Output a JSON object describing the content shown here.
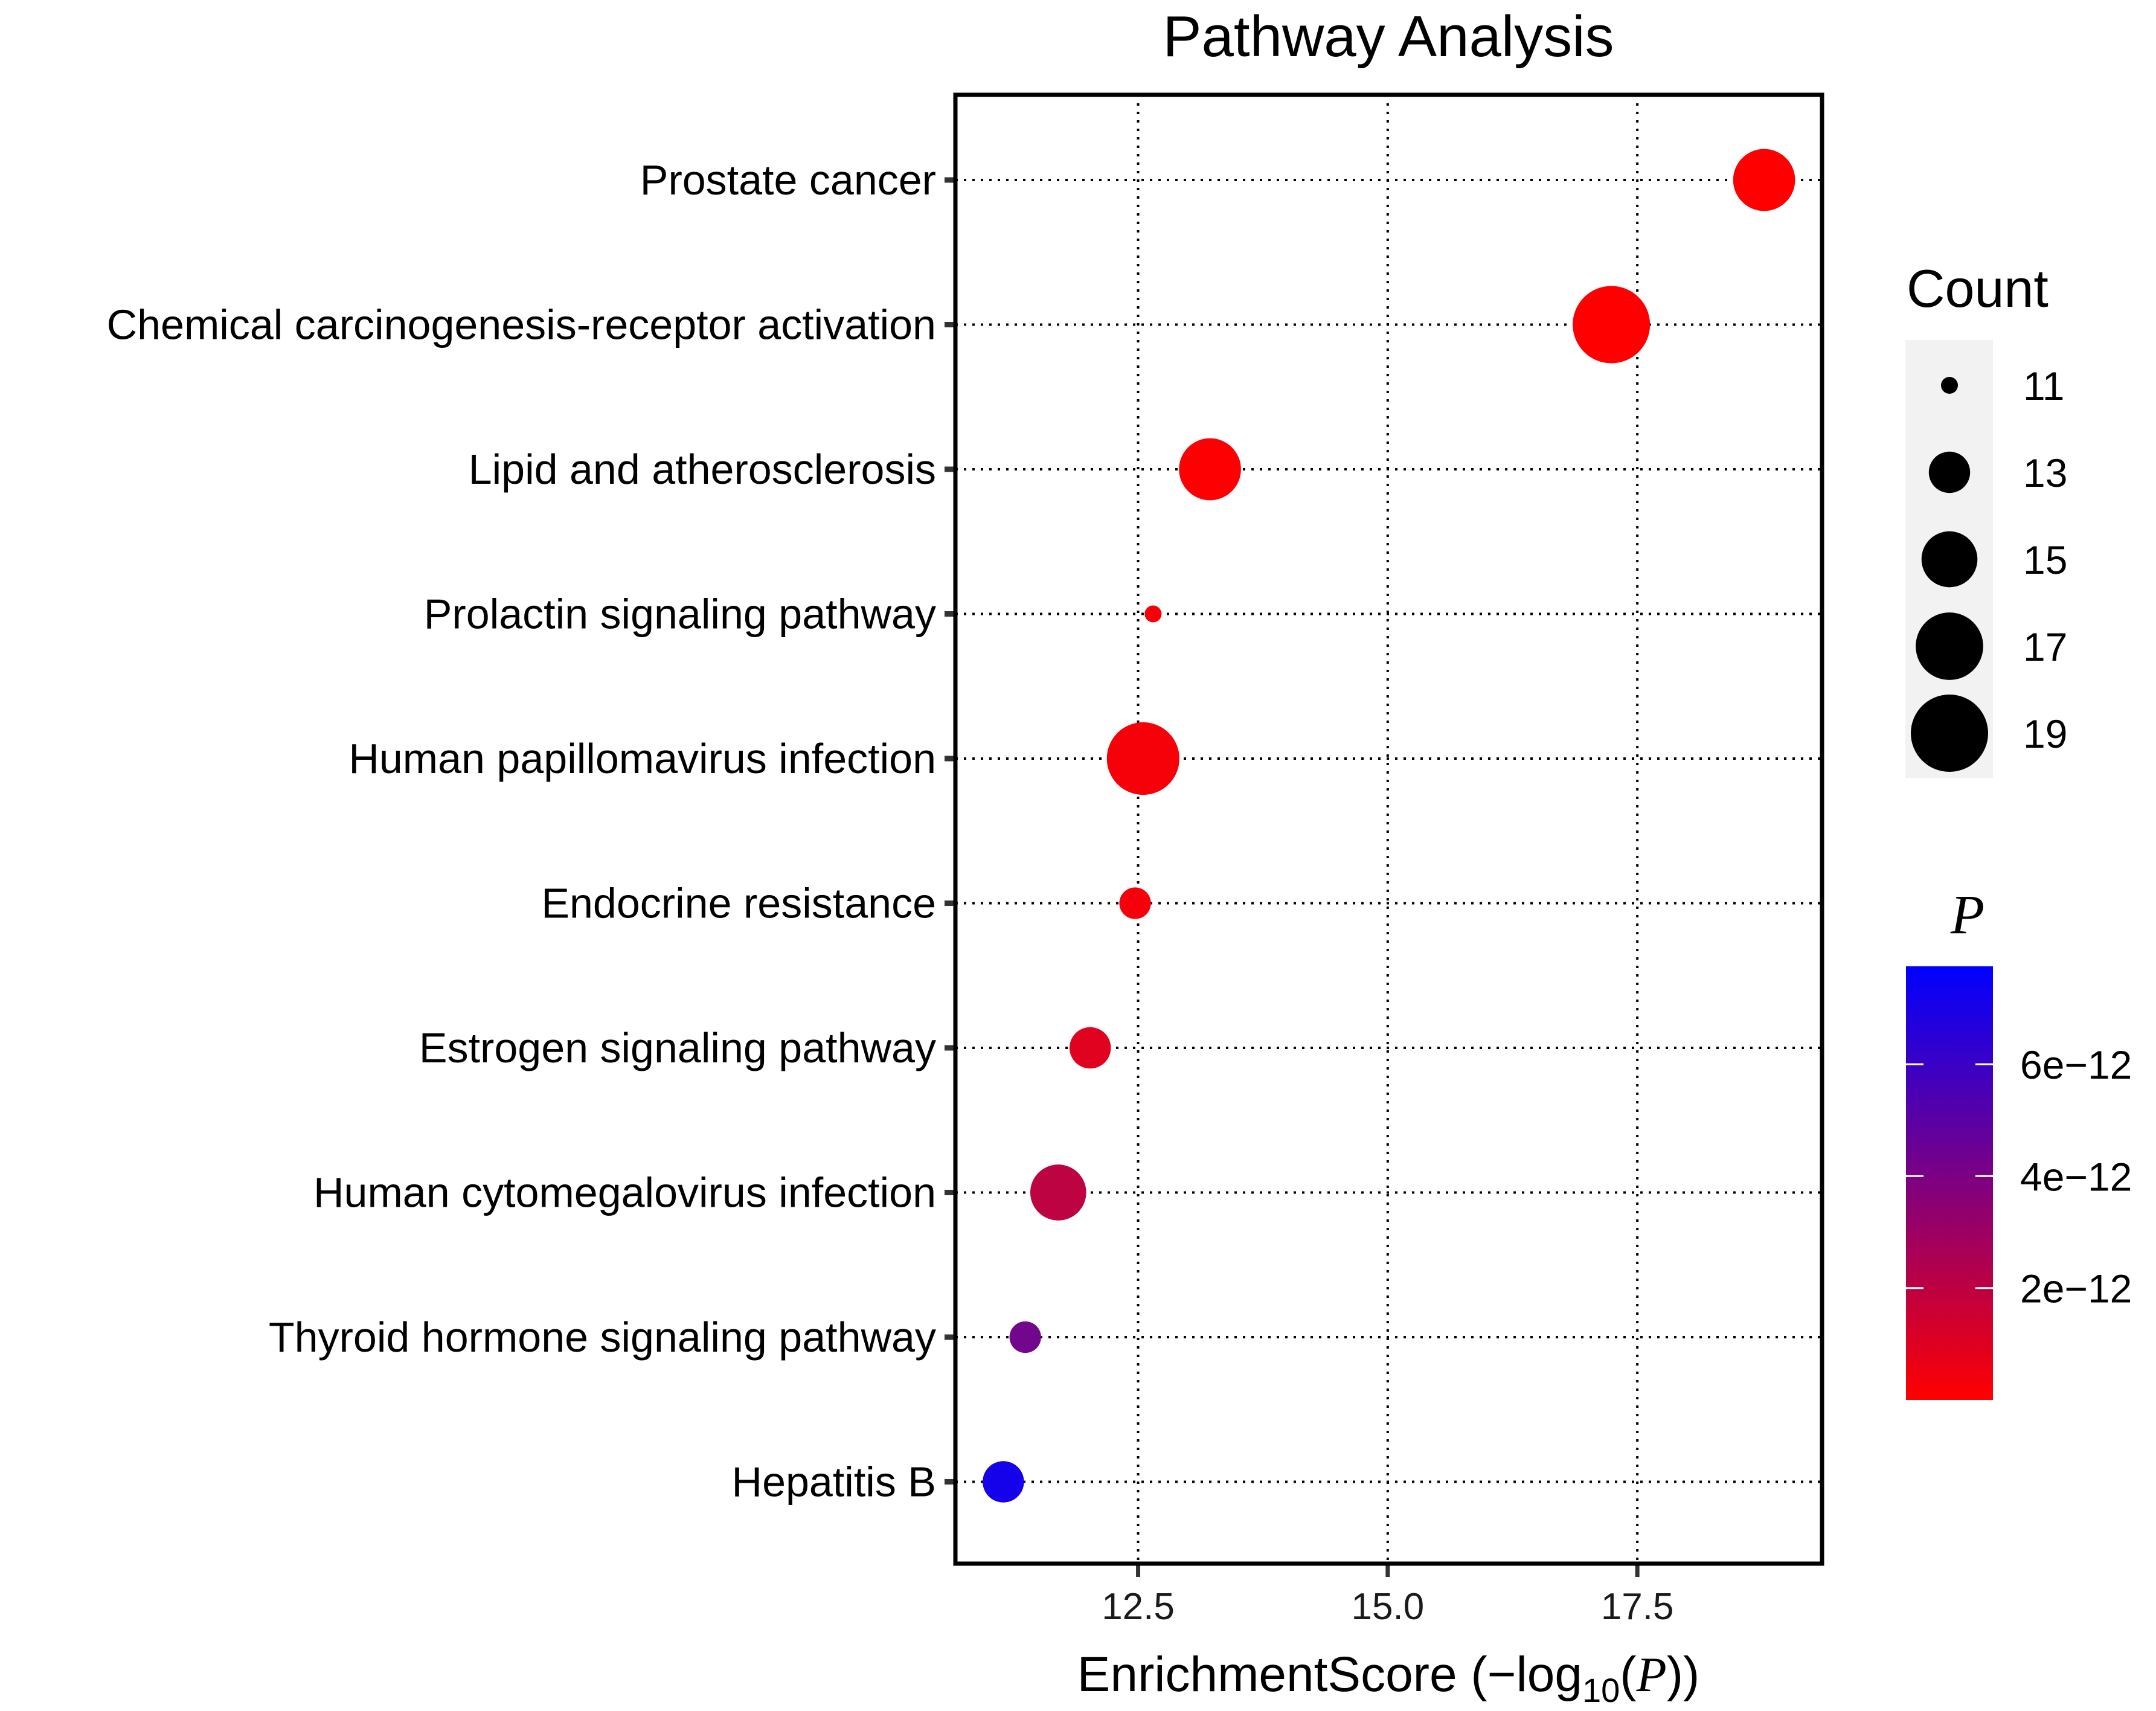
{
  "chart_data": {
    "type": "scatter",
    "subtype": "bubble",
    "title": "Pathway Analysis",
    "xlabel": "EnrichmentScore (−log10(P))",
    "xlabel_parts": {
      "main": "EnrichmentScore (−log",
      "sub": "10",
      "open": "(",
      "var": "P",
      "close": "))"
    },
    "ylabel": "",
    "xlim": [
      10.67,
      19.35
    ],
    "xticks": [
      12.5,
      15.0,
      17.5
    ],
    "xtick_labels": [
      "12.5",
      "15.0",
      "17.5"
    ],
    "grid": true,
    "categories": [
      "Prostate cancer",
      "Chemical carcinogenesis-receptor activation",
      "Lipid and atherosclerosis",
      "Prolactin signaling pathway",
      "Human papillomavirus infection",
      "Endocrine resistance",
      "Estrogen signaling pathway",
      "Human cytomegalovirus infection",
      "Thyroid hormone signaling pathway",
      "Hepatitis B"
    ],
    "points": [
      {
        "pathway": "Prostate cancer",
        "enrichment_score": 18.77,
        "count": 16,
        "p": 1.7e-19
      },
      {
        "pathway": "Chemical carcinogenesis-receptor activation",
        "enrichment_score": 17.24,
        "count": 19,
        "p": 5.8e-18
      },
      {
        "pathway": "Lipid and atherosclerosis",
        "enrichment_score": 13.22,
        "count": 16,
        "p": 6e-14
      },
      {
        "pathway": "Prolactin signaling pathway",
        "enrichment_score": 12.65,
        "count": 11,
        "p": 2.2e-13
      },
      {
        "pathway": "Human papillomavirus infection",
        "enrichment_score": 12.55,
        "count": 18,
        "p": 2.8e-13
      },
      {
        "pathway": "Endocrine resistance",
        "enrichment_score": 12.47,
        "count": 12,
        "p": 3.4e-13
      },
      {
        "pathway": "Estrogen signaling pathway",
        "enrichment_score": 12.02,
        "count": 13,
        "p": 9.5e-13
      },
      {
        "pathway": "Human cytomegalovirus infection",
        "enrichment_score": 11.7,
        "count": 15,
        "p": 2e-12
      },
      {
        "pathway": "Thyroid hormone signaling pathway",
        "enrichment_score": 11.37,
        "count": 12,
        "p": 4.3e-12
      },
      {
        "pathway": "Hepatitis B",
        "enrichment_score": 11.15,
        "count": 13,
        "p": 7.1e-12
      }
    ],
    "size_legend": {
      "title": "Count",
      "values": [
        11,
        13,
        15,
        17,
        19
      ],
      "labels": [
        "11",
        "13",
        "15",
        "17",
        "19"
      ],
      "placement": "right"
    },
    "color_legend": {
      "title": "P",
      "range": [
        0,
        7.75e-12
      ],
      "ticks": [
        2e-12,
        4e-12,
        6e-12
      ],
      "tick_labels": [
        "2e−12",
        "4e−12",
        "6e−12"
      ],
      "low_color": "#ff0000",
      "high_color": "#0000ff",
      "placement": "right"
    }
  }
}
